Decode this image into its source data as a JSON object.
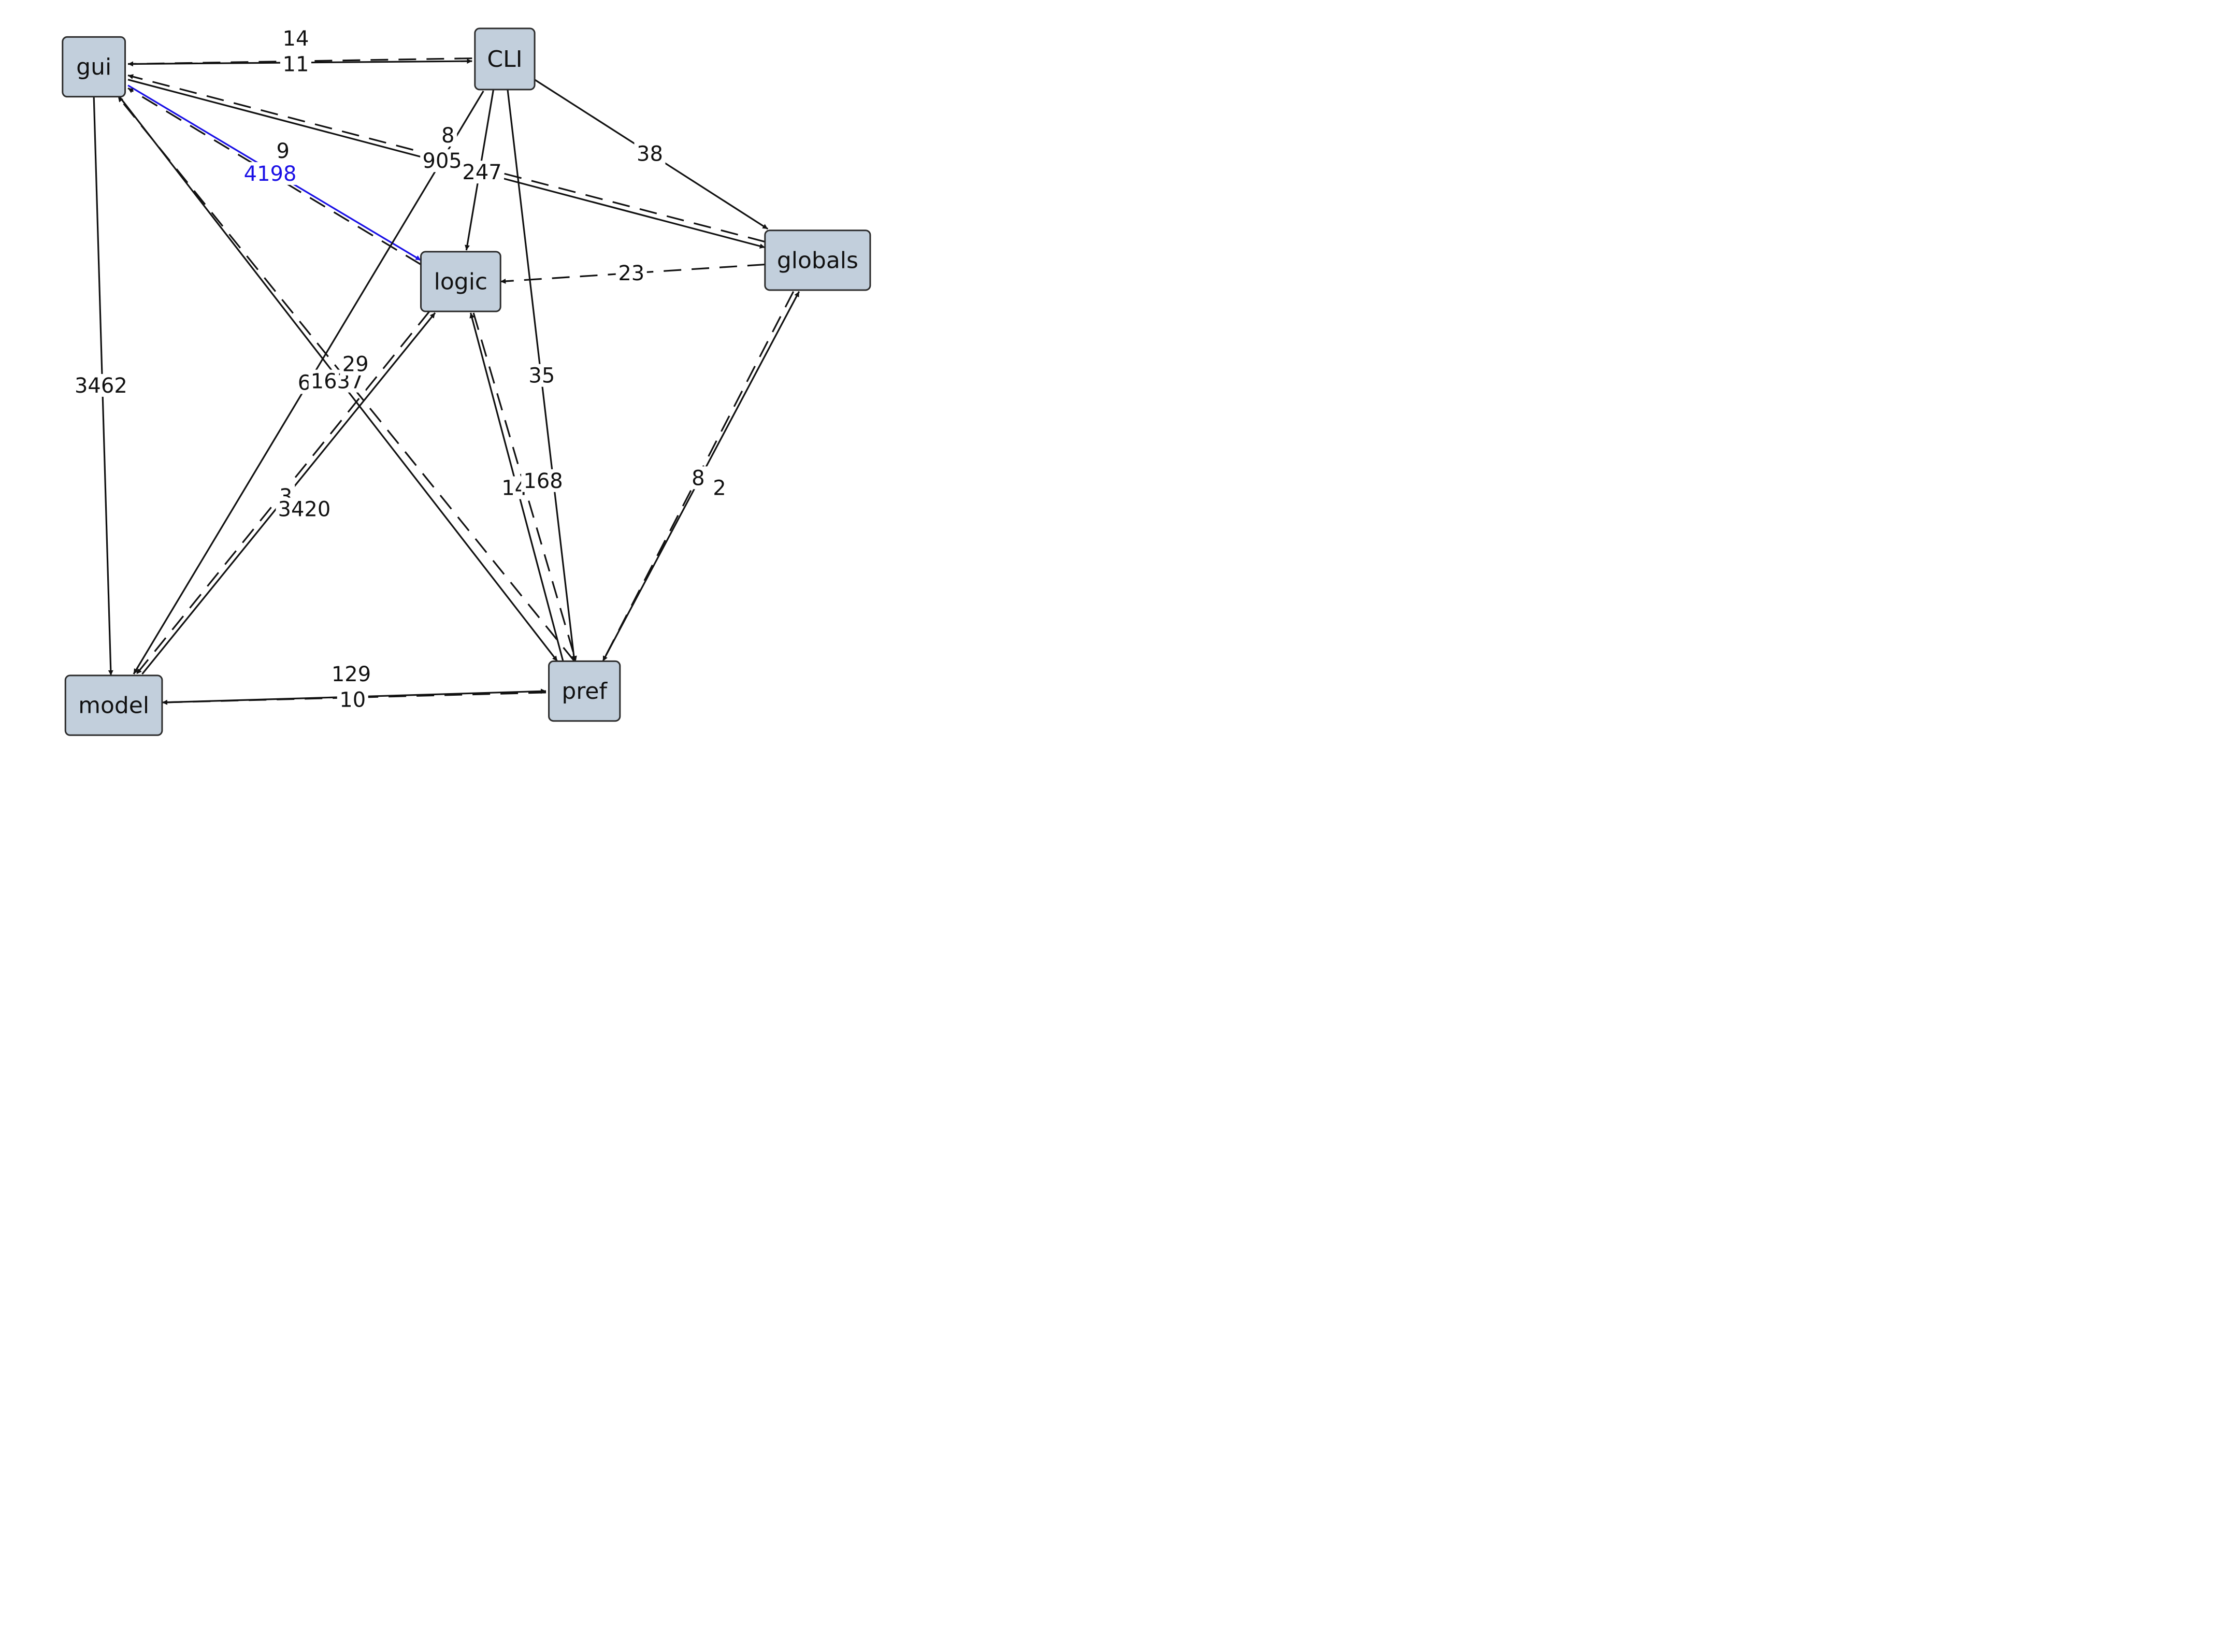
{
  "diagram": {
    "nodes": [
      {
        "id": "gui",
        "label": "gui"
      },
      {
        "id": "cli",
        "label": "CLI"
      },
      {
        "id": "logic",
        "label": "logic"
      },
      {
        "id": "globals",
        "label": "globals"
      },
      {
        "id": "model",
        "label": "model"
      },
      {
        "id": "pref",
        "label": "pref"
      }
    ],
    "edges": [
      {
        "from": "gui",
        "to": "cli",
        "label": "14",
        "style": "solid"
      },
      {
        "from": "cli",
        "to": "gui",
        "label": "11",
        "style": "dashed"
      },
      {
        "from": "cli",
        "to": "globals",
        "label": "38",
        "style": "solid"
      },
      {
        "from": "gui",
        "to": "globals",
        "label": "905",
        "style": "solid"
      },
      {
        "from": "globals",
        "to": "gui",
        "label": "8",
        "style": "dashed"
      },
      {
        "from": "gui",
        "to": "logic",
        "label": "4198",
        "style": "solid",
        "highlight": true
      },
      {
        "from": "logic",
        "to": "gui",
        "label": "9",
        "style": "dashed"
      },
      {
        "from": "cli",
        "to": "logic",
        "label": "247",
        "style": "solid"
      },
      {
        "from": "cli",
        "to": "model",
        "label": "6",
        "style": "solid"
      },
      {
        "from": "cli",
        "to": "pref",
        "label": "35",
        "style": "solid"
      },
      {
        "from": "globals",
        "to": "logic",
        "label": "23",
        "style": "dashed"
      },
      {
        "from": "gui",
        "to": "model",
        "label": "3462",
        "style": "solid"
      },
      {
        "from": "gui",
        "to": "pref",
        "label": "1637",
        "style": "solid"
      },
      {
        "from": "pref",
        "to": "gui",
        "label": "29",
        "style": "dashed"
      },
      {
        "from": "logic",
        "to": "model",
        "label": "3",
        "style": "dashed"
      },
      {
        "from": "model",
        "to": "logic",
        "label": "3420",
        "style": "solid"
      },
      {
        "from": "pref",
        "to": "logic",
        "label": "14",
        "style": "solid"
      },
      {
        "from": "logic",
        "to": "pref",
        "label": "168",
        "style": "dashed"
      },
      {
        "from": "pref",
        "to": "globals",
        "label": "2",
        "style": "solid"
      },
      {
        "from": "globals",
        "to": "pref",
        "label": "8",
        "style": "dashed"
      },
      {
        "from": "model",
        "to": "pref",
        "label": "129",
        "style": "solid"
      },
      {
        "from": "pref",
        "to": "model",
        "label": "10",
        "style": "dashed"
      }
    ]
  },
  "colors": {
    "node_fill": "#c2cfdc",
    "edge": "#111111",
    "highlight": "#1a10e6"
  }
}
